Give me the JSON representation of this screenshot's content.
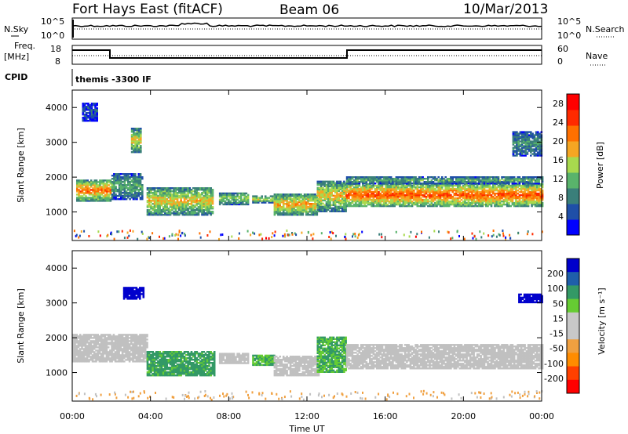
{
  "header": {
    "station": "Fort Hays East (fitACF)",
    "beam": "Beam 06",
    "date": "10/Mar/2013"
  },
  "panels": {
    "nsky_label": "N.Sky",
    "nsearch_label": "N.Search",
    "freq_label_1": "Freq.",
    "freq_label_2": "[MHz]",
    "nave_label": "Nave",
    "cpid_label": "CPID",
    "cpid_value": "themis -3300 IF",
    "noise_ticks_left": [
      "10^5",
      "10^0"
    ],
    "noise_ticks_right": [
      "10^5",
      "10^0"
    ],
    "freq_ticks": [
      "18",
      "8"
    ],
    "nave_ticks": [
      "60",
      "0"
    ]
  },
  "colors": {
    "power_scale": [
      "#0000ff",
      "#1f4fa8",
      "#3a7f7a",
      "#59b36b",
      "#a8d94e",
      "#f5a623",
      "#ff7000",
      "#ff2a00",
      "#ff0000"
    ],
    "velocity_scale": [
      "#ff0000",
      "#ff4000",
      "#ff8c00",
      "#f0a040",
      "#c8c8c8",
      "#c8c8c8",
      "#66cc33",
      "#339966",
      "#1f5faa",
      "#0000cc"
    ],
    "ground_scatter": "#c0c0c0"
  },
  "chart_data": [
    {
      "type": "heatmap",
      "title": "",
      "xlabel": "",
      "ylabel": "Slant Range [km]",
      "x_range": [
        "00:00",
        "24:00"
      ],
      "ylim": [
        180,
        4500
      ],
      "y_ticks": [
        1000,
        2000,
        3000,
        4000
      ],
      "colorbar_label": "Power [dB]",
      "colorbar_ticks": [
        4,
        8,
        12,
        16,
        20,
        24,
        28
      ],
      "colorbar_range": [
        0,
        30
      ],
      "regions": [
        {
          "t_start": 0.2,
          "t_end": 2.0,
          "r_low": 1300,
          "r_high": 1900,
          "value": 22
        },
        {
          "t_start": 2.0,
          "t_end": 3.6,
          "r_low": 1350,
          "r_high": 2100,
          "value": 12
        },
        {
          "t_start": 3.8,
          "t_end": 7.2,
          "r_low": 900,
          "r_high": 1700,
          "value": 18
        },
        {
          "t_start": 7.5,
          "t_end": 9.0,
          "r_low": 1200,
          "r_high": 1550,
          "value": 14
        },
        {
          "t_start": 9.2,
          "t_end": 10.2,
          "r_low": 1250,
          "r_high": 1450,
          "value": 16
        },
        {
          "t_start": 10.3,
          "t_end": 12.5,
          "r_low": 900,
          "r_high": 1500,
          "value": 20
        },
        {
          "t_start": 12.5,
          "t_end": 14.0,
          "r_low": 1000,
          "r_high": 1900,
          "value": 18
        },
        {
          "t_start": 14.0,
          "t_end": 24.0,
          "r_low": 1150,
          "r_high": 1800,
          "value": 24
        },
        {
          "t_start": 14.0,
          "t_end": 24.0,
          "r_low": 1800,
          "r_high": 2000,
          "value": 12
        },
        {
          "t_start": 0.5,
          "t_end": 1.3,
          "r_low": 3600,
          "r_high": 4100,
          "value": 6
        },
        {
          "t_start": 3.0,
          "t_end": 3.5,
          "r_low": 2700,
          "r_high": 3400,
          "value": 18
        },
        {
          "t_start": 22.5,
          "t_end": 24.0,
          "r_low": 2600,
          "r_high": 3300,
          "value": 10
        }
      ]
    },
    {
      "type": "heatmap",
      "title": "",
      "xlabel": "Time UT",
      "ylabel": "Slant Range [km]",
      "x_ticks": [
        "00:00",
        "04:00",
        "08:00",
        "12:00",
        "16:00",
        "20:00",
        "00:00"
      ],
      "ylim": [
        180,
        4500
      ],
      "y_ticks": [
        1000,
        2000,
        3000,
        4000
      ],
      "colorbar_label": "Velocity [m s⁻¹]",
      "colorbar_ticks": [
        200,
        100,
        50,
        15,
        -15,
        -50,
        -100,
        -200
      ],
      "regions": [
        {
          "t_start": 0.0,
          "t_end": 3.8,
          "r_low": 1300,
          "r_high": 2100,
          "value": 0,
          "kind": "ground"
        },
        {
          "t_start": 3.8,
          "t_end": 7.3,
          "r_low": 900,
          "r_high": 1600,
          "value": 40
        },
        {
          "t_start": 7.5,
          "t_end": 9.0,
          "r_low": 1250,
          "r_high": 1550,
          "value": 0,
          "kind": "ground"
        },
        {
          "t_start": 9.2,
          "t_end": 10.3,
          "r_low": 1200,
          "r_high": 1500,
          "value": 30
        },
        {
          "t_start": 10.3,
          "t_end": 12.6,
          "r_low": 900,
          "r_high": 1450,
          "value": 0,
          "kind": "ground"
        },
        {
          "t_start": 12.5,
          "t_end": 14.0,
          "r_low": 1000,
          "r_high": 2000,
          "value": 30
        },
        {
          "t_start": 14.0,
          "t_end": 24.0,
          "r_low": 1100,
          "r_high": 1800,
          "value": 0,
          "kind": "ground"
        },
        {
          "t_start": 2.6,
          "t_end": 3.6,
          "r_low": 3100,
          "r_high": 3450,
          "value": 220
        },
        {
          "t_start": 22.8,
          "t_end": 24.0,
          "r_low": 3000,
          "r_high": 3250,
          "value": 220
        }
      ]
    }
  ]
}
